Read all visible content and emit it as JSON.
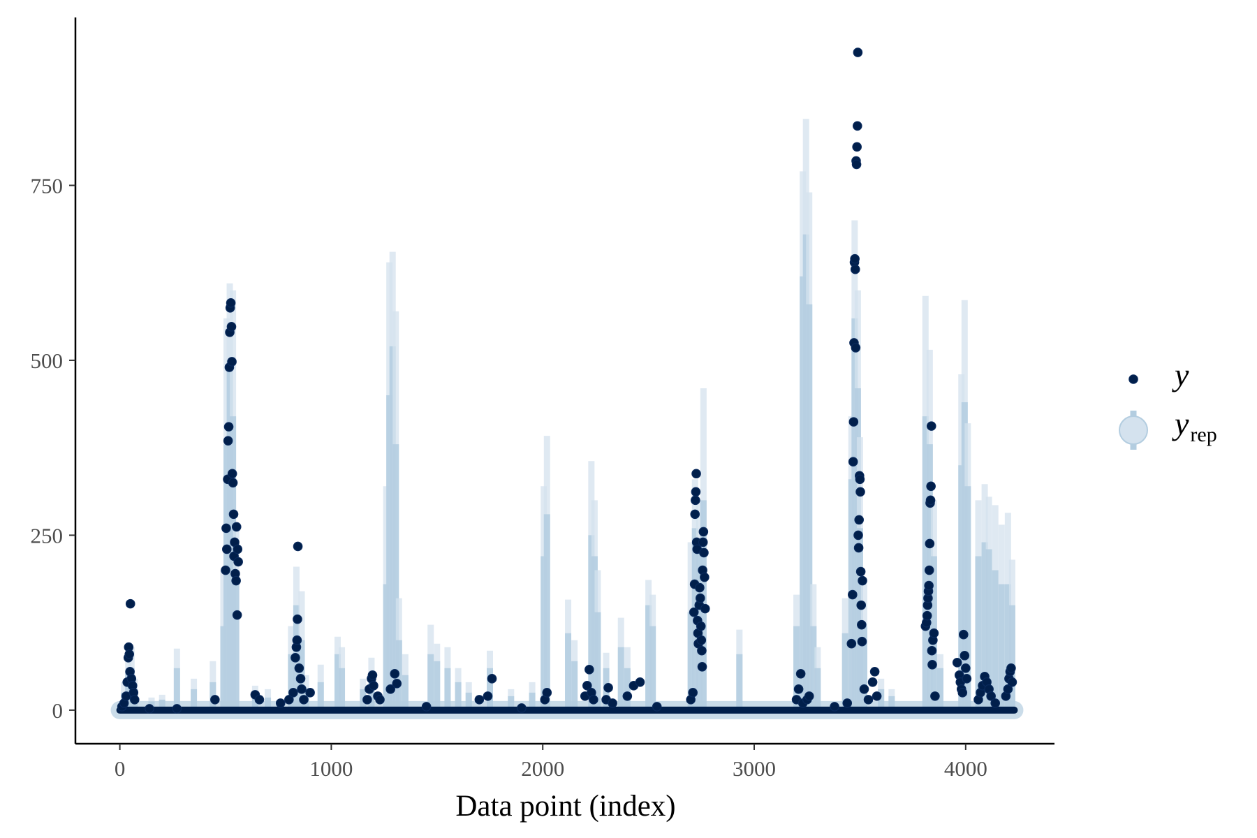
{
  "chart_data": {
    "type": "scatter",
    "title": "",
    "xlabel": "Data point (index)",
    "ylabel": "",
    "xlim": [
      -210,
      4420
    ],
    "ylim": [
      -48,
      990
    ],
    "x_ticks": [
      0,
      1000,
      2000,
      3000,
      4000
    ],
    "x_tick_labels": [
      "0",
      "1000",
      "2000",
      "3000",
      "4000"
    ],
    "y_ticks": [
      0,
      250,
      500,
      750
    ],
    "y_tick_labels": [
      "0",
      "250",
      "500",
      "750"
    ],
    "grid": false,
    "legend_position": "right",
    "colors": {
      "y": "#011f4b",
      "y_outline": "#0a2a5c",
      "yrep": "#b3cde0",
      "yrep_light": "#d4e2ee"
    },
    "legend": [
      {
        "key": "y",
        "label": "y",
        "subscript": ""
      },
      {
        "key": "yrep",
        "label": "y",
        "subscript": "rep"
      }
    ],
    "series": [
      {
        "name": "yrep",
        "kind": "interval",
        "intervals": [
          [
            20,
            0,
            25,
            40
          ],
          [
            40,
            0,
            55,
            75
          ],
          [
            55,
            0,
            60,
            90
          ],
          [
            70,
            0,
            30,
            45
          ],
          [
            150,
            0,
            12,
            18
          ],
          [
            200,
            0,
            15,
            22
          ],
          [
            270,
            0,
            60,
            88
          ],
          [
            350,
            0,
            30,
            45
          ],
          [
            440,
            0,
            40,
            70
          ],
          [
            490,
            0,
            120,
            200
          ],
          [
            505,
            0,
            380,
            560
          ],
          [
            520,
            0,
            500,
            610
          ],
          [
            535,
            0,
            420,
            600
          ],
          [
            550,
            0,
            200,
            260
          ],
          [
            640,
            0,
            20,
            35
          ],
          [
            700,
            0,
            18,
            30
          ],
          [
            810,
            0,
            80,
            120
          ],
          [
            835,
            0,
            150,
            205
          ],
          [
            860,
            0,
            100,
            170
          ],
          [
            880,
            0,
            30,
            50
          ],
          [
            950,
            0,
            40,
            65
          ],
          [
            1030,
            0,
            80,
            105
          ],
          [
            1050,
            0,
            60,
            90
          ],
          [
            1150,
            0,
            30,
            45
          ],
          [
            1190,
            0,
            50,
            75
          ],
          [
            1260,
            0,
            180,
            320
          ],
          [
            1275,
            0,
            450,
            640
          ],
          [
            1290,
            0,
            520,
            655
          ],
          [
            1305,
            0,
            380,
            570
          ],
          [
            1320,
            0,
            100,
            160
          ],
          [
            1350,
            0,
            50,
            80
          ],
          [
            1470,
            0,
            80,
            122
          ],
          [
            1500,
            0,
            70,
            95
          ],
          [
            1550,
            0,
            60,
            90
          ],
          [
            1600,
            0,
            40,
            60
          ],
          [
            1650,
            0,
            25,
            40
          ],
          [
            1750,
            0,
            60,
            85
          ],
          [
            1850,
            0,
            20,
            30
          ],
          [
            1950,
            0,
            25,
            40
          ],
          [
            2005,
            0,
            220,
            320
          ],
          [
            2020,
            0,
            280,
            392
          ],
          [
            2120,
            0,
            110,
            158
          ],
          [
            2150,
            0,
            70,
            100
          ],
          [
            2230,
            0,
            250,
            356
          ],
          [
            2245,
            0,
            220,
            300
          ],
          [
            2260,
            0,
            140,
            200
          ],
          [
            2300,
            0,
            60,
            82
          ],
          [
            2370,
            0,
            90,
            132
          ],
          [
            2400,
            0,
            60,
            90
          ],
          [
            2500,
            0,
            150,
            186
          ],
          [
            2520,
            0,
            120,
            165
          ],
          [
            2700,
            0,
            140,
            240
          ],
          [
            2720,
            0,
            260,
            330
          ],
          [
            2740,
            0,
            230,
            300
          ],
          [
            2760,
            0,
            300,
            460
          ],
          [
            2930,
            0,
            80,
            115
          ],
          [
            3200,
            0,
            120,
            165
          ],
          [
            3230,
            0,
            620,
            770
          ],
          [
            3245,
            0,
            680,
            845
          ],
          [
            3260,
            0,
            580,
            740
          ],
          [
            3280,
            0,
            120,
            180
          ],
          [
            3300,
            0,
            60,
            90
          ],
          [
            3430,
            0,
            110,
            160
          ],
          [
            3460,
            0,
            330,
            420
          ],
          [
            3475,
            0,
            560,
            700
          ],
          [
            3490,
            0,
            460,
            600
          ],
          [
            3500,
            0,
            260,
            390
          ],
          [
            3520,
            0,
            120,
            180
          ],
          [
            3600,
            0,
            30,
            45
          ],
          [
            3650,
            0,
            20,
            30
          ],
          [
            3810,
            0,
            420,
            592
          ],
          [
            3830,
            0,
            380,
            515
          ],
          [
            3850,
            0,
            220,
            300
          ],
          [
            3880,
            0,
            60,
            80
          ],
          [
            3980,
            0,
            350,
            480
          ],
          [
            3995,
            0,
            440,
            586
          ],
          [
            4010,
            0,
            320,
            410
          ],
          [
            4060,
            0,
            220,
            300
          ],
          [
            4090,
            0,
            240,
            323
          ],
          [
            4110,
            0,
            230,
            305
          ],
          [
            4140,
            0,
            200,
            293
          ],
          [
            4170,
            0,
            180,
            265
          ],
          [
            4200,
            0,
            180,
            282
          ],
          [
            4220,
            0,
            150,
            215
          ]
        ]
      },
      {
        "name": "y",
        "kind": "points",
        "points": [
          [
            10,
            5
          ],
          [
            20,
            10
          ],
          [
            30,
            20
          ],
          [
            35,
            40
          ],
          [
            40,
            75
          ],
          [
            42,
            90
          ],
          [
            45,
            80
          ],
          [
            48,
            55
          ],
          [
            50,
            152
          ],
          [
            55,
            45
          ],
          [
            60,
            35
          ],
          [
            65,
            25
          ],
          [
            70,
            15
          ],
          [
            140,
            2
          ],
          [
            270,
            2
          ],
          [
            450,
            15
          ],
          [
            500,
            200
          ],
          [
            503,
            260
          ],
          [
            506,
            230
          ],
          [
            510,
            330
          ],
          [
            512,
            385
          ],
          [
            515,
            405
          ],
          [
            518,
            490
          ],
          [
            520,
            540
          ],
          [
            522,
            575
          ],
          [
            525,
            582
          ],
          [
            528,
            548
          ],
          [
            530,
            498
          ],
          [
            532,
            338
          ],
          [
            535,
            325
          ],
          [
            538,
            280
          ],
          [
            540,
            220
          ],
          [
            543,
            240
          ],
          [
            546,
            195
          ],
          [
            550,
            185
          ],
          [
            552,
            262
          ],
          [
            555,
            136
          ],
          [
            557,
            230
          ],
          [
            560,
            212
          ],
          [
            640,
            22
          ],
          [
            660,
            15
          ],
          [
            760,
            10
          ],
          [
            800,
            15
          ],
          [
            820,
            25
          ],
          [
            830,
            75
          ],
          [
            835,
            90
          ],
          [
            838,
            100
          ],
          [
            840,
            130
          ],
          [
            842,
            234
          ],
          [
            848,
            60
          ],
          [
            855,
            45
          ],
          [
            860,
            30
          ],
          [
            870,
            15
          ],
          [
            900,
            25
          ],
          [
            1170,
            15
          ],
          [
            1180,
            30
          ],
          [
            1190,
            45
          ],
          [
            1195,
            50
          ],
          [
            1200,
            35
          ],
          [
            1220,
            20
          ],
          [
            1230,
            15
          ],
          [
            1280,
            30
          ],
          [
            1300,
            52
          ],
          [
            1310,
            38
          ],
          [
            1450,
            5
          ],
          [
            1700,
            15
          ],
          [
            1740,
            20
          ],
          [
            1760,
            45
          ],
          [
            1900,
            3
          ],
          [
            2010,
            15
          ],
          [
            2020,
            25
          ],
          [
            2200,
            20
          ],
          [
            2210,
            35
          ],
          [
            2220,
            58
          ],
          [
            2230,
            25
          ],
          [
            2240,
            15
          ],
          [
            2300,
            15
          ],
          [
            2310,
            32
          ],
          [
            2330,
            10
          ],
          [
            2400,
            20
          ],
          [
            2430,
            35
          ],
          [
            2460,
            40
          ],
          [
            2540,
            5
          ],
          [
            2700,
            15
          ],
          [
            2710,
            25
          ],
          [
            2715,
            140
          ],
          [
            2718,
            180
          ],
          [
            2720,
            280
          ],
          [
            2722,
            300
          ],
          [
            2724,
            312
          ],
          [
            2726,
            338
          ],
          [
            2728,
            240
          ],
          [
            2730,
            230
          ],
          [
            2732,
            128
          ],
          [
            2734,
            110
          ],
          [
            2736,
            95
          ],
          [
            2740,
            150
          ],
          [
            2742,
            175
          ],
          [
            2745,
            160
          ],
          [
            2748,
            120
          ],
          [
            2750,
            100
          ],
          [
            2752,
            85
          ],
          [
            2754,
            62
          ],
          [
            2756,
            200
          ],
          [
            2758,
            240
          ],
          [
            2760,
            255
          ],
          [
            2762,
            225
          ],
          [
            2765,
            190
          ],
          [
            2768,
            145
          ],
          [
            3200,
            15
          ],
          [
            3210,
            30
          ],
          [
            3220,
            52
          ],
          [
            3230,
            10
          ],
          [
            3250,
            15
          ],
          [
            3260,
            20
          ],
          [
            3380,
            5
          ],
          [
            3440,
            10
          ],
          [
            3460,
            95
          ],
          [
            3465,
            165
          ],
          [
            3468,
            355
          ],
          [
            3470,
            412
          ],
          [
            3472,
            525
          ],
          [
            3474,
            640
          ],
          [
            3476,
            645
          ],
          [
            3478,
            630
          ],
          [
            3480,
            518
          ],
          [
            3482,
            785
          ],
          [
            3484,
            780
          ],
          [
            3486,
            805
          ],
          [
            3488,
            835
          ],
          [
            3490,
            940
          ],
          [
            3492,
            250
          ],
          [
            3494,
            232
          ],
          [
            3496,
            272
          ],
          [
            3498,
            335
          ],
          [
            3500,
            330
          ],
          [
            3502,
            312
          ],
          [
            3504,
            198
          ],
          [
            3506,
            150
          ],
          [
            3508,
            122
          ],
          [
            3510,
            98
          ],
          [
            3512,
            185
          ],
          [
            3520,
            30
          ],
          [
            3540,
            15
          ],
          [
            3560,
            40
          ],
          [
            3570,
            55
          ],
          [
            3580,
            20
          ],
          [
            3810,
            120
          ],
          [
            3815,
            125
          ],
          [
            3818,
            135
          ],
          [
            3820,
            150
          ],
          [
            3822,
            160
          ],
          [
            3824,
            170
          ],
          [
            3826,
            178
          ],
          [
            3828,
            200
          ],
          [
            3830,
            238
          ],
          [
            3832,
            296
          ],
          [
            3834,
            300
          ],
          [
            3836,
            320
          ],
          [
            3838,
            406
          ],
          [
            3840,
            85
          ],
          [
            3842,
            65
          ],
          [
            3845,
            100
          ],
          [
            3850,
            110
          ],
          [
            3855,
            20
          ],
          [
            3960,
            68
          ],
          [
            3970,
            50
          ],
          [
            3975,
            40
          ],
          [
            3980,
            30
          ],
          [
            3985,
            25
          ],
          [
            3990,
            108
          ],
          [
            3995,
            78
          ],
          [
            4000,
            60
          ],
          [
            4005,
            45
          ],
          [
            4060,
            15
          ],
          [
            4070,
            25
          ],
          [
            4080,
            35
          ],
          [
            4090,
            48
          ],
          [
            4100,
            40
          ],
          [
            4110,
            30
          ],
          [
            4120,
            20
          ],
          [
            4140,
            10
          ],
          [
            4190,
            20
          ],
          [
            4200,
            30
          ],
          [
            4205,
            45
          ],
          [
            4210,
            55
          ],
          [
            4215,
            60
          ],
          [
            4220,
            40
          ]
        ],
        "zero_run_ranges": [
          [
            0,
            4230
          ]
        ]
      }
    ]
  }
}
